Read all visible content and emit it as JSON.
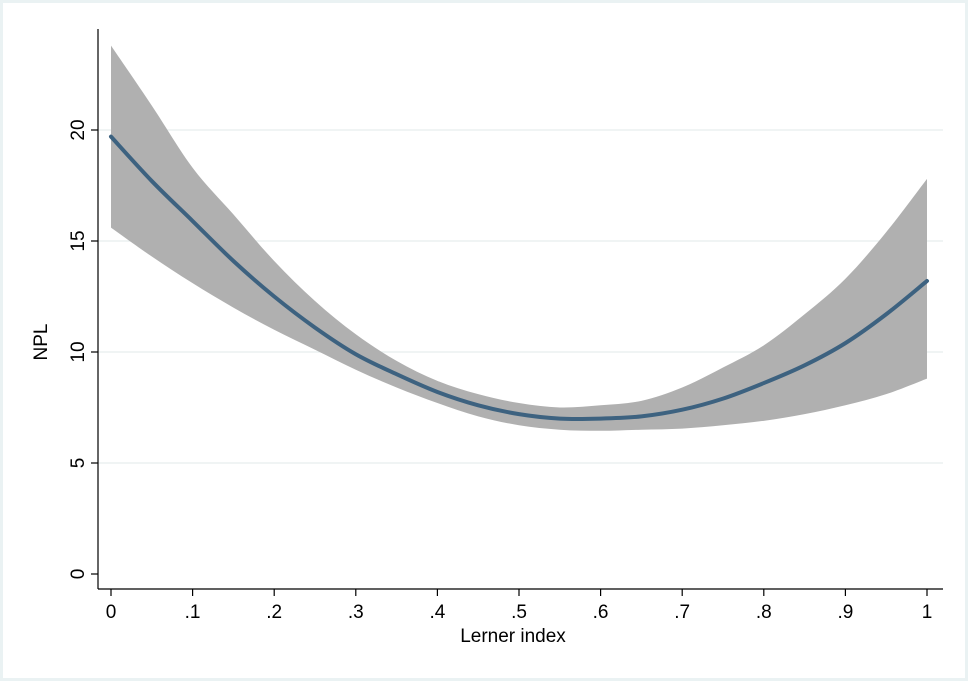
{
  "chart_data": {
    "type": "line",
    "title": "",
    "xlabel": "Lerner index",
    "ylabel": "NPL",
    "xlim": [
      0,
      1
    ],
    "ylim": [
      0,
      24
    ],
    "grid": "horizontal",
    "legend": "none",
    "x_ticks": [
      {
        "value": 0,
        "label": "0"
      },
      {
        "value": 0.1,
        "label": ".1"
      },
      {
        "value": 0.2,
        "label": ".2"
      },
      {
        "value": 0.3,
        "label": ".3"
      },
      {
        "value": 0.4,
        "label": ".4"
      },
      {
        "value": 0.5,
        "label": ".5"
      },
      {
        "value": 0.6,
        "label": ".6"
      },
      {
        "value": 0.7,
        "label": ".7"
      },
      {
        "value": 0.8,
        "label": ".8"
      },
      {
        "value": 0.9,
        "label": ".9"
      },
      {
        "value": 1,
        "label": "1"
      }
    ],
    "y_ticks": [
      {
        "value": 0,
        "label": "0"
      },
      {
        "value": 5,
        "label": "5"
      },
      {
        "value": 10,
        "label": "10"
      },
      {
        "value": 15,
        "label": "15"
      },
      {
        "value": 20,
        "label": "20"
      }
    ],
    "x": [
      0,
      0.05,
      0.1,
      0.15,
      0.2,
      0.25,
      0.3,
      0.35,
      0.4,
      0.45,
      0.5,
      0.55,
      0.6,
      0.65,
      0.7,
      0.75,
      0.8,
      0.85,
      0.9,
      0.95,
      1
    ],
    "series": [
      {
        "values": [
          19.7,
          17.7,
          15.9,
          14.1,
          12.5,
          11.1,
          9.9,
          9.0,
          8.2,
          7.6,
          7.2,
          7.0,
          7.0,
          7.1,
          7.4,
          7.9,
          8.6,
          9.4,
          10.4,
          11.7,
          13.2
        ],
        "ci_lower": [
          15.6,
          14.3,
          13.1,
          12.0,
          11.0,
          10.1,
          9.2,
          8.4,
          7.7,
          7.1,
          6.7,
          6.5,
          6.45,
          6.5,
          6.55,
          6.7,
          6.9,
          7.2,
          7.6,
          8.1,
          8.8
        ],
        "ci_upper": [
          23.8,
          21.1,
          18.3,
          16.2,
          14.1,
          12.3,
          10.8,
          9.6,
          8.7,
          8.1,
          7.7,
          7.5,
          7.6,
          7.8,
          8.4,
          9.3,
          10.3,
          11.7,
          13.3,
          15.4,
          17.8
        ]
      }
    ],
    "colors": {
      "line": "#3d6280",
      "band": "#b0b0b0",
      "grid": "#e6eeee",
      "axis": "#000000",
      "outer_background": "#eaf2f3",
      "plot_background": "#ffffff"
    }
  }
}
